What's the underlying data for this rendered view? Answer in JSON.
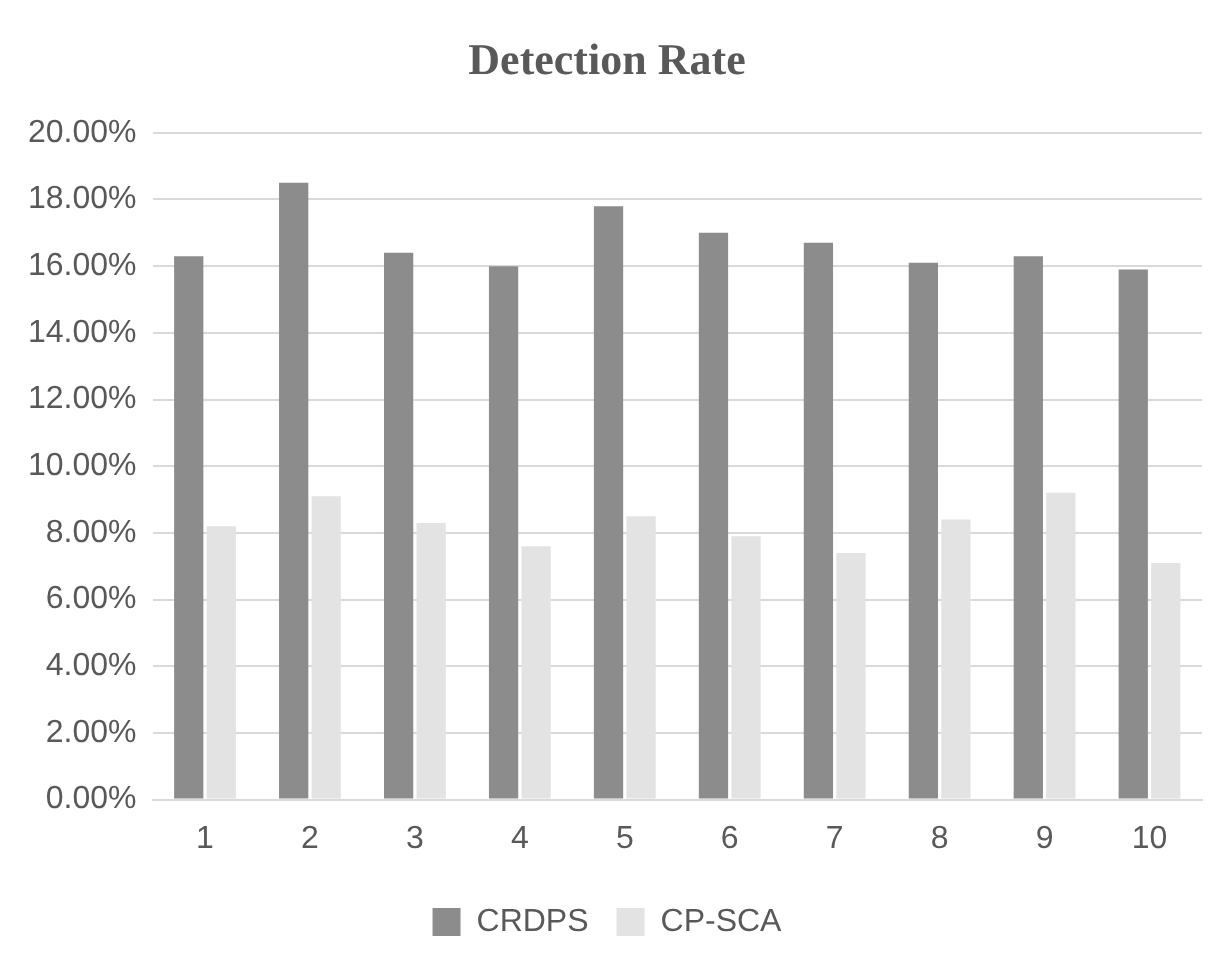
{
  "chart_data": {
    "type": "bar",
    "title": "Detection Rate",
    "categories": [
      "1",
      "2",
      "3",
      "4",
      "5",
      "6",
      "7",
      "8",
      "9",
      "10"
    ],
    "series": [
      {
        "name": "CRDPS",
        "color": "#8c8c8c",
        "values": [
          16.3,
          18.5,
          16.4,
          16.0,
          17.8,
          17.0,
          16.7,
          16.1,
          16.3,
          15.9
        ]
      },
      {
        "name": "CP-SCA",
        "color": "#e3e3e3",
        "values": [
          8.2,
          9.1,
          8.3,
          7.6,
          8.5,
          7.9,
          7.4,
          8.4,
          9.2,
          7.1
        ]
      }
    ],
    "ylim": [
      0,
      20
    ],
    "yticks": [
      {
        "value": 0,
        "label": "0.00%"
      },
      {
        "value": 2,
        "label": "2.00%"
      },
      {
        "value": 4,
        "label": "4.00%"
      },
      {
        "value": 6,
        "label": "6.00%"
      },
      {
        "value": 8,
        "label": "8.00%"
      },
      {
        "value": 10,
        "label": "10.00%"
      },
      {
        "value": 12,
        "label": "12.00%"
      },
      {
        "value": 14,
        "label": "14.00%"
      },
      {
        "value": 16,
        "label": "16.00%"
      },
      {
        "value": 18,
        "label": "18.00%"
      },
      {
        "value": 20,
        "label": "20.00%"
      }
    ],
    "grid": "y",
    "legend": "bottom"
  }
}
